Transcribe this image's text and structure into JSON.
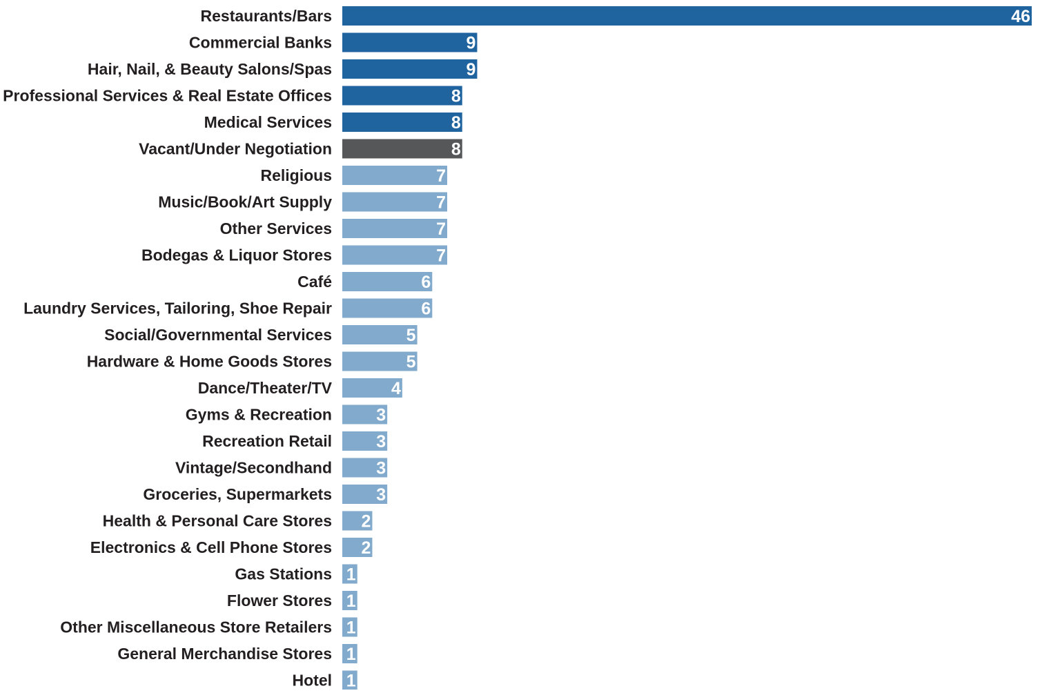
{
  "chart_data": {
    "type": "bar",
    "orientation": "horizontal",
    "title": "",
    "xlabel": "",
    "ylabel": "",
    "grid": false,
    "legend": "none",
    "xlim": [
      0,
      46
    ],
    "categories": [
      "Restaurants/Bars",
      "Commercial Banks",
      "Hair, Nail, & Beauty Salons/Spas",
      "Professional Services & Real Estate Offices",
      "Medical Services",
      "Vacant/Under Negotiation",
      "Religious",
      "Music/Book/Art Supply",
      "Other Services",
      "Bodegas & Liquor Stores",
      "Café",
      "Laundry Services, Tailoring, Shoe Repair",
      "Social/Governmental Services",
      "Hardware & Home Goods Stores",
      "Dance/Theater/TV",
      "Gyms & Recreation",
      "Recreation Retail",
      "Vintage/Secondhand",
      "Groceries, Supermarkets",
      "Health & Personal Care Stores",
      "Electronics & Cell Phone Stores",
      "Gas Stations",
      "Flower Stores",
      "Other Miscellaneous Store Retailers",
      "General Merchandise Stores",
      "Hotel"
    ],
    "values": [
      46,
      9,
      9,
      8,
      8,
      8,
      7,
      7,
      7,
      7,
      6,
      6,
      5,
      5,
      4,
      3,
      3,
      3,
      3,
      2,
      2,
      1,
      1,
      1,
      1,
      1
    ],
    "value_labels": [
      "46",
      "9",
      "9",
      "8",
      "8",
      "8",
      "7",
      "7",
      "7",
      "7",
      "6",
      "6",
      "5",
      "5",
      "4",
      "3",
      "3",
      "3",
      "3",
      "2",
      "2",
      "1",
      "1",
      "1",
      "1",
      "1"
    ],
    "bar_colors": [
      "#1f639f",
      "#1f639f",
      "#1f639f",
      "#1f639f",
      "#1f639f",
      "#555759",
      "#82aacc",
      "#82aacc",
      "#82aacc",
      "#82aacc",
      "#82aacc",
      "#82aacc",
      "#82aacc",
      "#82aacc",
      "#82aacc",
      "#82aacc",
      "#82aacc",
      "#82aacc",
      "#82aacc",
      "#82aacc",
      "#82aacc",
      "#82aacc",
      "#82aacc",
      "#82aacc",
      "#82aacc",
      "#82aacc"
    ],
    "colors": {
      "dark_blue": "#1f639f",
      "dark_gray": "#555759",
      "light_blue": "#82aacc",
      "label_text": "#231f20",
      "value_text": "#ffffff"
    }
  }
}
